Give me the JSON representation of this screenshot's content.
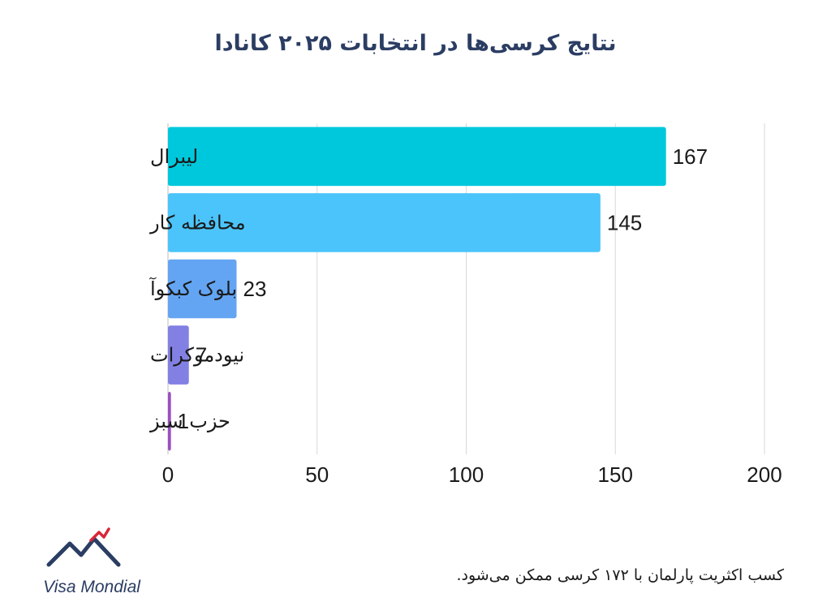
{
  "title": "نتایج کرسی‌ها در انتخابات ۲۰۲۵ کانادا",
  "footnote": "کسب اکثریت پارلمان با ۱۷۲ کرسی ممکن می‌شود.",
  "logo": {
    "text": "Visa Mondial",
    "icon": "mountain-logo-icon"
  },
  "chart_data": {
    "type": "bar",
    "orientation": "horizontal",
    "title": "نتایج کرسی‌ها در انتخابات ۲۰۲۵ کانادا",
    "categories": [
      "لیبرال",
      "محافظه کار",
      "بلوک کبکوآ",
      "نیودموکرات",
      "حزب سبز"
    ],
    "values": [
      167,
      145,
      23,
      7,
      1
    ],
    "colors": [
      "#00c8dc",
      "#4bc4fb",
      "#63a5f2",
      "#8380e4",
      "#9b4fc2"
    ],
    "xlim": [
      0,
      200
    ],
    "xticks": [
      0,
      50,
      100,
      150,
      200
    ],
    "grid": "vertical",
    "legend": "none"
  }
}
